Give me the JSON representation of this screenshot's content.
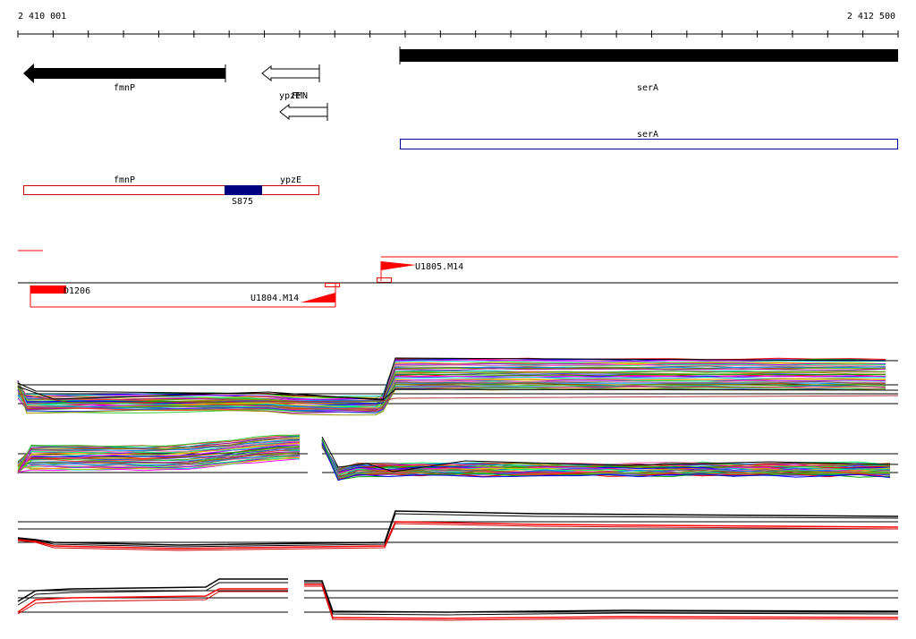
{
  "ruler": {
    "start_label": "2 410 001",
    "end_label": "2 412 500",
    "start": 2410001,
    "end": 2412500
  },
  "genes": {
    "fmnP": "fmnP",
    "ypzE": "ypzE",
    "FMN": "FMN",
    "serA": "serA"
  },
  "annotations": {
    "fmnP": "fmnP",
    "ypzE": "ypzE",
    "serA": "serA",
    "S875": "S875"
  },
  "transcripts": {
    "U1805": "U1805.M14",
    "D1206": "D1206",
    "U1804": "U1804.M14"
  },
  "colors": {
    "gene_fill": "#000000",
    "annotation_outline": "#cc0000",
    "serA_outline": "#000099",
    "s875_fill": "#000080",
    "transcript": "#ff0000",
    "axis": "#000000"
  }
}
